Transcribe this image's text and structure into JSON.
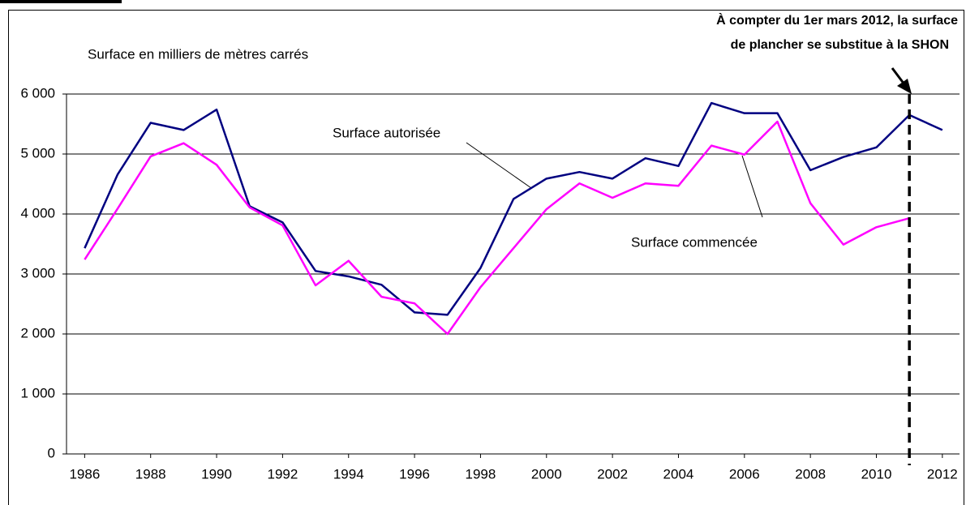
{
  "chart_data": {
    "type": "line",
    "y_axis_label": "Surface en milliers de mètres carrés",
    "annotation": [
      "À compter du 1er mars 2012, la surface",
      "de plancher se substitue à la SHON"
    ],
    "vline_x": 2011,
    "x": [
      1986,
      1987,
      1988,
      1989,
      1990,
      1991,
      1992,
      1993,
      1994,
      1995,
      1996,
      1997,
      1998,
      1999,
      2000,
      2001,
      2002,
      2003,
      2004,
      2005,
      2006,
      2007,
      2008,
      2009,
      2010,
      2011,
      2012
    ],
    "xlim": [
      1985.45,
      2012.52
    ],
    "xticks": [
      1986,
      1988,
      1990,
      1992,
      1994,
      1996,
      1998,
      2000,
      2002,
      2004,
      2006,
      2008,
      2010,
      2012
    ],
    "ylim": [
      0,
      6000
    ],
    "yticks": [
      0,
      {
        "value": 1000,
        "label": "1 000"
      },
      {
        "value": 2000,
        "label": "2 000"
      },
      {
        "value": 3000,
        "label": "3 000"
      },
      {
        "value": 4000,
        "label": "4 000"
      },
      {
        "value": 5000,
        "label": "5 000"
      },
      {
        "value": 6000,
        "label": "6 000"
      }
    ],
    "grid": true,
    "series": [
      {
        "name": "Surface autorisée",
        "color": "#000080",
        "values": [
          3430,
          4660,
          5520,
          5400,
          5740,
          4130,
          3860,
          3050,
          2960,
          2820,
          2360,
          2320,
          3100,
          4250,
          4590,
          4700,
          4590,
          4930,
          4800,
          5850,
          5680,
          5680,
          4730,
          4950,
          5110,
          5650,
          5400
        ]
      },
      {
        "name": "Surface commencée",
        "color": "#ff00ff",
        "values": [
          3240,
          4090,
          4960,
          5180,
          4820,
          4110,
          3810,
          2810,
          3220,
          2620,
          2510,
          2000,
          2780,
          3430,
          4080,
          4510,
          4270,
          4510,
          4470,
          5140,
          4990,
          5540,
          4180,
          3490,
          3780,
          3930,
          null
        ]
      }
    ]
  }
}
